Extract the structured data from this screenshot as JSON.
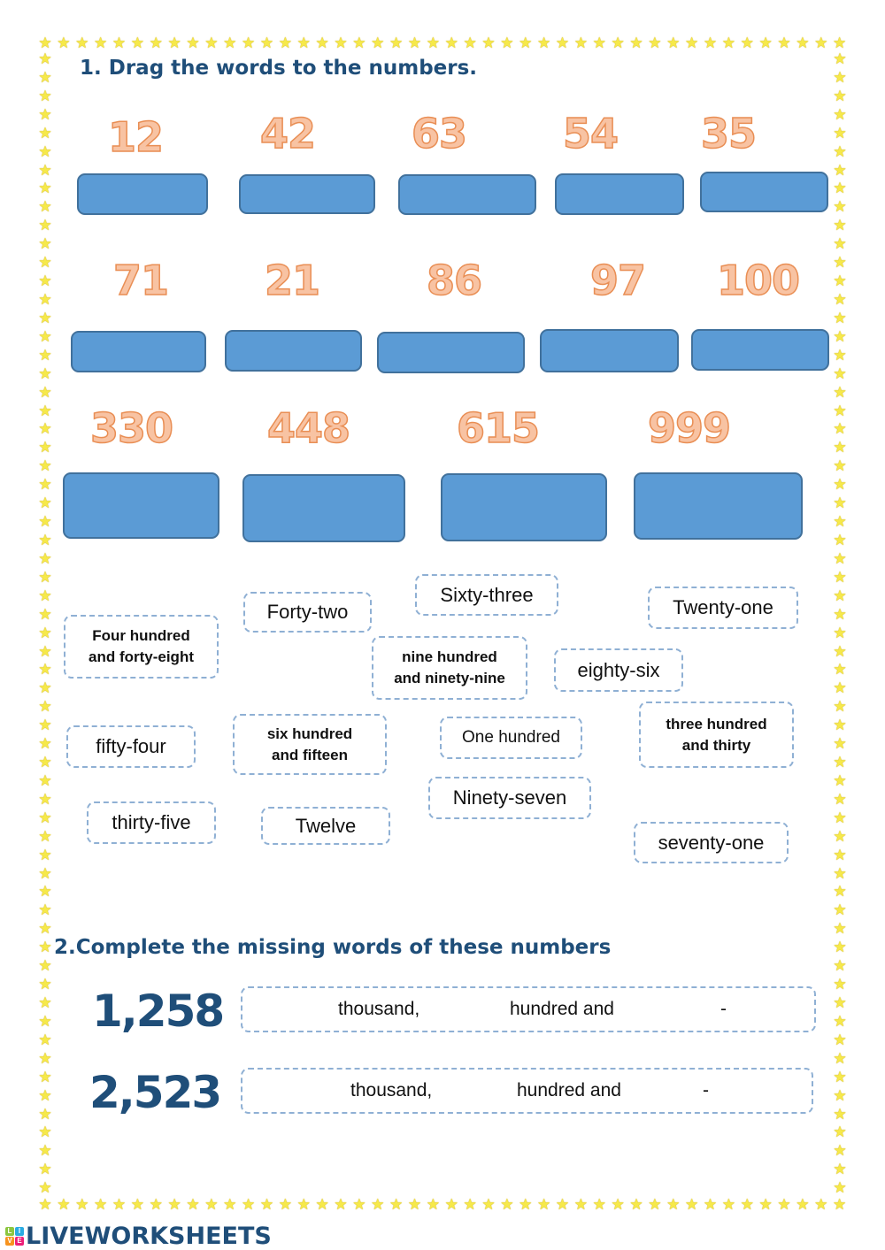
{
  "section1": {
    "title": "1. Drag  the words  to the numbers.",
    "numbers": [
      {
        "value": "12"
      },
      {
        "value": "42"
      },
      {
        "value": "63"
      },
      {
        "value": "54"
      },
      {
        "value": "35"
      },
      {
        "value": "71"
      },
      {
        "value": "21"
      },
      {
        "value": "86"
      },
      {
        "value": "97"
      },
      {
        "value": "100"
      },
      {
        "value": "330"
      },
      {
        "value": "448"
      },
      {
        "value": "615"
      },
      {
        "value": "999"
      }
    ],
    "word_cards": [
      {
        "text": "Four hundred and forty-eight",
        "line1": "Four hundred",
        "line2": "and forty-eight"
      },
      {
        "text": "Forty-two"
      },
      {
        "text": "Sixty-three"
      },
      {
        "text": "Twenty-one"
      },
      {
        "text": "nine hundred and ninety-nine",
        "line1": "nine hundred",
        "line2": "and ninety-nine"
      },
      {
        "text": "eighty-six"
      },
      {
        "text": "fifty-four"
      },
      {
        "text": "six hundred and fifteen",
        "line1": "six hundred",
        "line2": "and fifteen"
      },
      {
        "text": "One hundred"
      },
      {
        "text": "three hundred and thirty",
        "line1": "three hundred",
        "line2": "and thirty"
      },
      {
        "text": "Ninety-seven"
      },
      {
        "text": "thirty-five"
      },
      {
        "text": "Twelve"
      },
      {
        "text": "seventy-one"
      }
    ]
  },
  "section2": {
    "title": "2.Complete the missing  words  of  these numbers",
    "rows": [
      {
        "number": "1,258",
        "word1": "thousand,",
        "word2": "hundred and",
        "dash": "-"
      },
      {
        "number": "2,523",
        "word1": "thousand,",
        "word2": "hundred and",
        "dash": "-"
      }
    ]
  },
  "footer": {
    "logo_letters": [
      "L",
      "I",
      "V",
      "E"
    ],
    "logo_colors": [
      "#8cc63f",
      "#29abe2",
      "#f7931e",
      "#ed1e79"
    ],
    "brand": "LIVEWORKSHEETS"
  },
  "colors": {
    "title": "#1f4e79",
    "number_fill": "#f8c3a3",
    "number_stroke": "#e98e54",
    "drop_fill": "#5b9bd5",
    "drop_border": "#41719c",
    "card_border": "#8fb0d4",
    "star": "#f6e94a"
  }
}
